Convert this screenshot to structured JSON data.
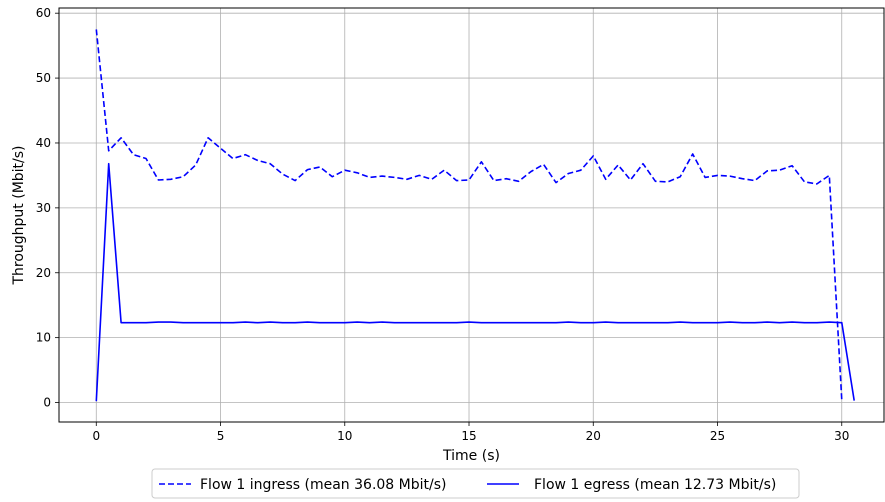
{
  "chart_data": {
    "type": "line",
    "xlabel": "Time (s)",
    "ylabel": "Throughput (Mbit/s)",
    "xlim": [
      -1.5,
      31.7
    ],
    "ylim": [
      -3,
      60.8
    ],
    "xticks": [
      0,
      5,
      10,
      15,
      20,
      25,
      30
    ],
    "yticks": [
      0,
      10,
      20,
      30,
      40,
      50,
      60
    ],
    "grid": true,
    "legend_position": "bottom-center",
    "series": [
      {
        "name": "Flow 1 ingress (mean 36.08 Mbit/s)",
        "style": "dashed",
        "color": "#0000ff",
        "x": [
          0,
          0.5,
          1.0,
          1.5,
          2.0,
          2.5,
          3.0,
          3.5,
          4.0,
          4.5,
          5.0,
          5.5,
          6.0,
          6.5,
          7.0,
          7.5,
          8.0,
          8.5,
          9.0,
          9.5,
          10.0,
          10.5,
          11.0,
          11.5,
          12.0,
          12.5,
          13.0,
          13.5,
          14.0,
          14.5,
          15.0,
          15.5,
          16.0,
          16.5,
          17.0,
          17.5,
          18.0,
          18.5,
          19.0,
          19.5,
          20.0,
          20.5,
          21.0,
          21.5,
          22.0,
          22.5,
          23.0,
          23.5,
          24.0,
          24.5,
          25.0,
          25.5,
          26.0,
          26.5,
          27.0,
          27.5,
          28.0,
          28.5,
          29.0,
          29.5,
          30.0
        ],
        "values": [
          57.5,
          38.8,
          40.8,
          38.2,
          37.6,
          34.3,
          34.4,
          34.8,
          36.6,
          40.8,
          39.2,
          37.6,
          38.2,
          37.3,
          36.8,
          35.2,
          34.2,
          35.9,
          36.3,
          34.8,
          35.8,
          35.4,
          34.7,
          34.9,
          34.7,
          34.4,
          35.0,
          34.4,
          35.8,
          34.2,
          34.3,
          37.1,
          34.2,
          34.5,
          34.1,
          35.6,
          36.7,
          33.9,
          35.3,
          35.8,
          38.0,
          34.4,
          36.6,
          34.3,
          36.8,
          34.1,
          34.0,
          34.8,
          38.3,
          34.7,
          35.0,
          34.9,
          34.5,
          34.2,
          35.7,
          35.8,
          36.5,
          34.0,
          33.7,
          35.0,
          0.3
        ]
      },
      {
        "name": "Flow 1 egress (mean 12.73 Mbit/s)",
        "style": "solid",
        "color": "#0000ff",
        "x": [
          0,
          0.5,
          1.0,
          1.5,
          2.0,
          2.5,
          3.0,
          3.5,
          4.0,
          4.5,
          5.0,
          5.5,
          6.0,
          6.5,
          7.0,
          7.5,
          8.0,
          8.5,
          9.0,
          9.5,
          10.0,
          10.5,
          11.0,
          11.5,
          12.0,
          12.5,
          13.0,
          13.5,
          14.0,
          14.5,
          15.0,
          15.5,
          16.0,
          16.5,
          17.0,
          17.5,
          18.0,
          18.5,
          19.0,
          19.5,
          20.0,
          20.5,
          21.0,
          21.5,
          22.0,
          22.5,
          23.0,
          23.5,
          24.0,
          24.5,
          25.0,
          25.5,
          26.0,
          26.5,
          27.0,
          27.5,
          28.0,
          28.5,
          29.0,
          29.5,
          30.0,
          30.5
        ],
        "values": [
          0.2,
          36.8,
          12.3,
          12.3,
          12.3,
          12.4,
          12.4,
          12.3,
          12.3,
          12.3,
          12.3,
          12.3,
          12.4,
          12.3,
          12.4,
          12.3,
          12.3,
          12.4,
          12.3,
          12.3,
          12.3,
          12.4,
          12.3,
          12.4,
          12.3,
          12.3,
          12.3,
          12.3,
          12.3,
          12.3,
          12.4,
          12.3,
          12.3,
          12.3,
          12.3,
          12.3,
          12.3,
          12.3,
          12.4,
          12.3,
          12.3,
          12.4,
          12.3,
          12.3,
          12.3,
          12.3,
          12.3,
          12.4,
          12.3,
          12.3,
          12.3,
          12.4,
          12.3,
          12.3,
          12.4,
          12.3,
          12.4,
          12.3,
          12.3,
          12.4,
          12.3,
          0.3
        ]
      }
    ]
  }
}
